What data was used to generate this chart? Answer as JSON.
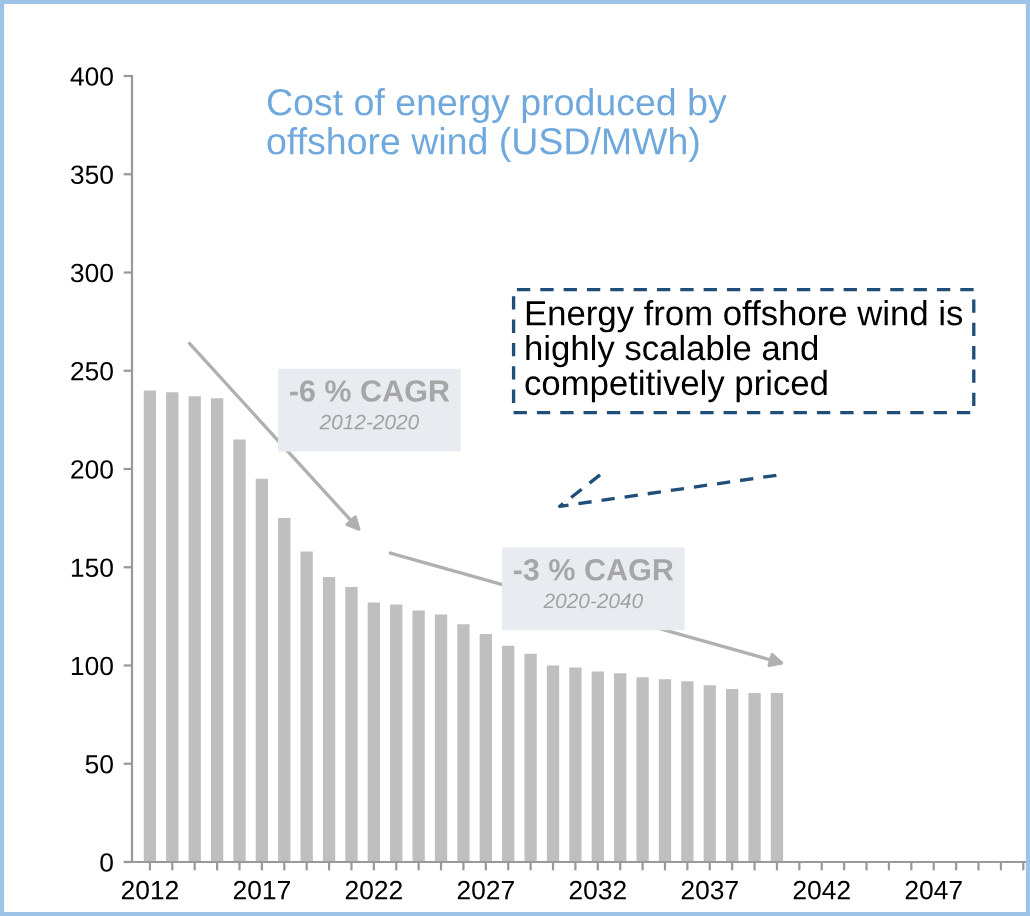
{
  "chart_data": {
    "type": "bar",
    "title": "Cost of energy produced by offshore wind (USD/MWh)",
    "x": [
      2012,
      2013,
      2014,
      2015,
      2016,
      2017,
      2018,
      2019,
      2020,
      2021,
      2022,
      2023,
      2024,
      2025,
      2026,
      2027,
      2028,
      2029,
      2030,
      2031,
      2032,
      2033,
      2034,
      2035,
      2036,
      2037,
      2038,
      2039,
      2040
    ],
    "values": [
      240,
      239,
      237,
      236,
      215,
      195,
      175,
      158,
      145,
      140,
      132,
      131,
      128,
      126,
      121,
      116,
      110,
      106,
      100,
      99,
      97,
      96,
      94,
      93,
      92,
      90,
      88,
      86,
      86
    ],
    "color": "#bfbfbf",
    "xlim": [
      2011.2,
      2051.3
    ],
    "xticks": [
      2012,
      {
        "value": 2013,
        "label": null
      },
      {
        "value": 2014,
        "label": null
      },
      {
        "value": 2015,
        "label": null
      },
      {
        "value": 2016,
        "label": null
      },
      2017,
      {
        "value": 2018,
        "label": null
      },
      {
        "value": 2019,
        "label": null
      },
      {
        "value": 2020,
        "label": null
      },
      {
        "value": 2021,
        "label": null
      },
      2022,
      {
        "value": 2023,
        "label": null
      },
      {
        "value": 2024,
        "label": null
      },
      {
        "value": 2025,
        "label": null
      },
      {
        "value": 2026,
        "label": null
      },
      2027,
      {
        "value": 2028,
        "label": null
      },
      {
        "value": 2029,
        "label": null
      },
      {
        "value": 2030,
        "label": null
      },
      {
        "value": 2031,
        "label": null
      },
      2032,
      {
        "value": 2033,
        "label": null
      },
      {
        "value": 2034,
        "label": null
      },
      {
        "value": 2035,
        "label": null
      },
      {
        "value": 2036,
        "label": null
      },
      2037,
      {
        "value": 2038,
        "label": null
      },
      {
        "value": 2039,
        "label": null
      },
      {
        "value": 2040,
        "label": null
      },
      {
        "value": 2041,
        "label": null
      },
      2042,
      {
        "value": 2043,
        "label": null
      },
      {
        "value": 2044,
        "label": null
      },
      {
        "value": 2045,
        "label": null
      },
      {
        "value": 2046,
        "label": null
      },
      2047,
      {
        "value": 2048,
        "label": null
      },
      {
        "value": 2049,
        "label": null
      },
      {
        "value": 2050,
        "label": null
      },
      {
        "value": 2051,
        "label": null
      }
    ],
    "ylim": [
      0,
      400
    ],
    "yticks": [
      0,
      50,
      100,
      150,
      200,
      250,
      300,
      350,
      400
    ],
    "grid": false,
    "legend": false,
    "annotations": [
      "-6 % CAGR",
      "2012-2020",
      "-3 % CAGR",
      "2020-2040",
      "Energy from offshore wind is highly scalable and competitively priced"
    ]
  }
}
